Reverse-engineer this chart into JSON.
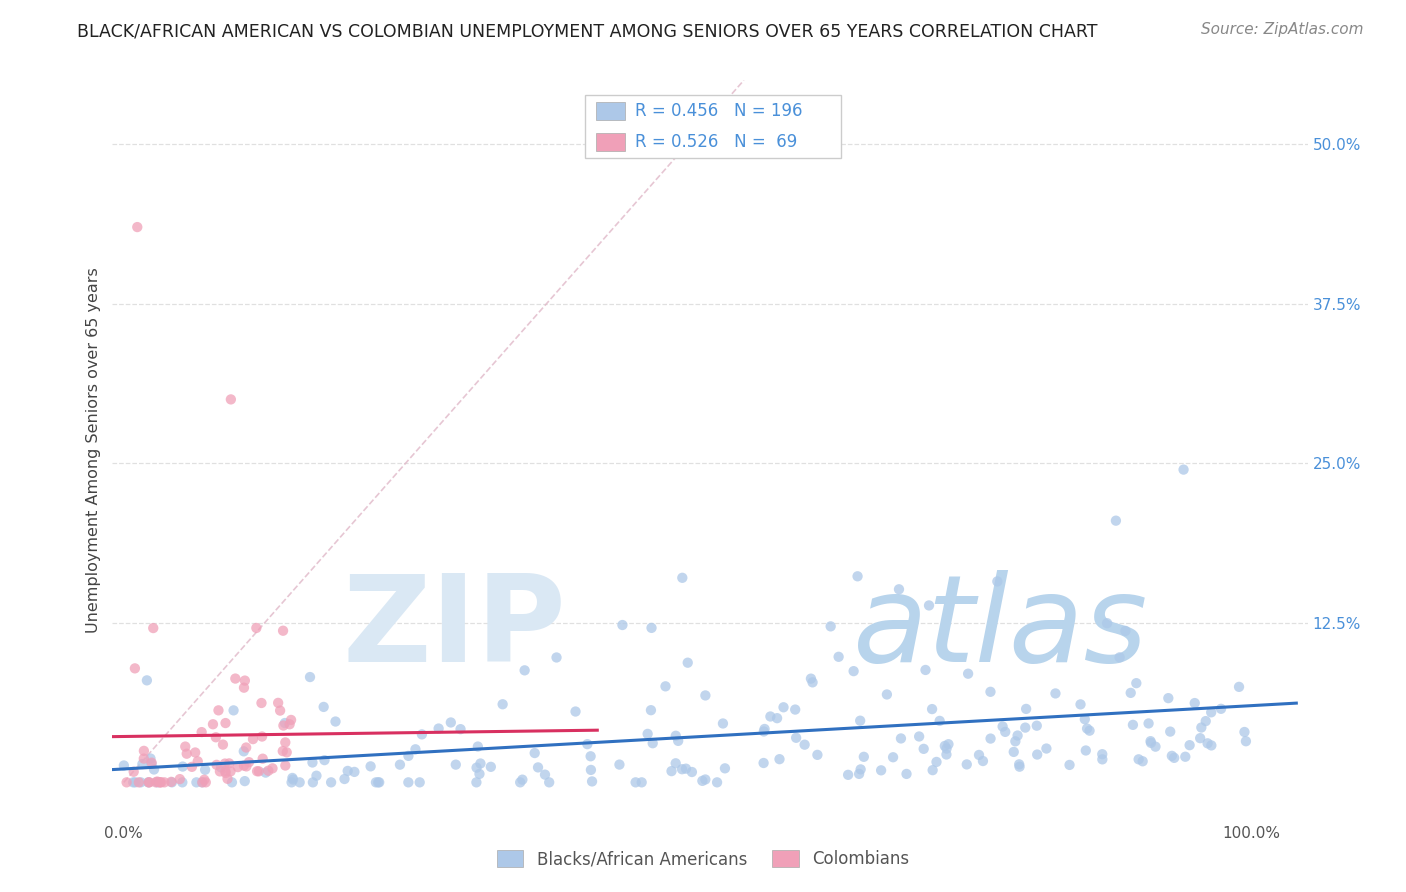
{
  "title": "BLACK/AFRICAN AMERICAN VS COLOMBIAN UNEMPLOYMENT AMONG SENIORS OVER 65 YEARS CORRELATION CHART",
  "source": "Source: ZipAtlas.com",
  "ylabel": "Unemployment Among Seniors over 65 years",
  "right_yticks": [
    "50.0%",
    "37.5%",
    "25.0%",
    "12.5%"
  ],
  "right_ytick_vals": [
    0.5,
    0.375,
    0.25,
    0.125
  ],
  "xlim": [
    -0.01,
    1.05
  ],
  "ylim": [
    -0.03,
    0.55
  ],
  "blue_R": 0.456,
  "blue_N": 196,
  "pink_R": 0.526,
  "pink_N": 69,
  "blue_color": "#adc8e8",
  "pink_color": "#f0a0b8",
  "blue_line_color": "#3070c0",
  "pink_line_color": "#d83060",
  "diagonal_color": "#cccccc",
  "watermark_zip_color": "#dae8f4",
  "watermark_atlas_color": "#b8d4ec",
  "legend_label_blue": "Blacks/African Americans",
  "legend_label_pink": "Colombians",
  "background_color": "#ffffff",
  "grid_color": "#e0e0e0",
  "seed": 12345
}
